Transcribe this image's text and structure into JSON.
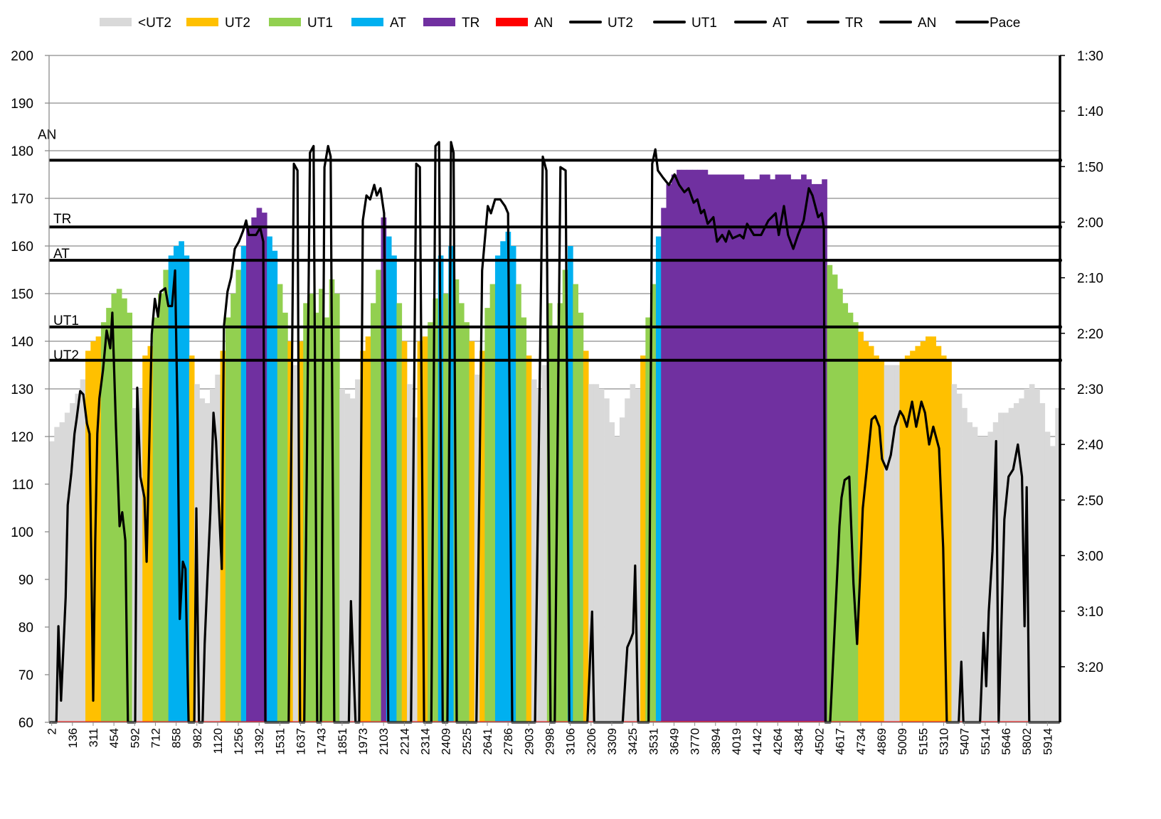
{
  "chart_data": {
    "type": "bar+line",
    "title": "",
    "xlabel": "",
    "ylabel": "",
    "ylim": [
      60,
      200
    ],
    "y_ticks": [
      "60",
      "70",
      "80",
      "90",
      "100",
      "110",
      "120",
      "130",
      "140",
      "150",
      "160",
      "170",
      "180",
      "190",
      "200"
    ],
    "y2_label": "Pace",
    "y2lim_seconds": [
      90,
      210
    ],
    "y2_inverted": true,
    "y2_ticks": [
      "1:30",
      "1:40",
      "1:50",
      "2:00",
      "2:10",
      "2:20",
      "2:30",
      "2:40",
      "2:50",
      "3:00",
      "3:10",
      "3:20"
    ],
    "x_tick_labels": [
      "2",
      "136",
      "311",
      "454",
      "592",
      "712",
      "858",
      "982",
      "1120",
      "1256",
      "1392",
      "1531",
      "1637",
      "1743",
      "1851",
      "1973",
      "2103",
      "2214",
      "2314",
      "2409",
      "2525",
      "2641",
      "2786",
      "2903",
      "2998",
      "3106",
      "3206",
      "3309",
      "3425",
      "3531",
      "3649",
      "3770",
      "3894",
      "4019",
      "4142",
      "4264",
      "4384",
      "4502",
      "4617",
      "4734",
      "4869",
      "5009",
      "5155",
      "5310",
      "5407",
      "5514",
      "5646",
      "5802",
      "5914"
    ],
    "samples_per_tick": 4,
    "grid": true,
    "legend_position": "top",
    "legend": [
      {
        "label": "<UT2",
        "kind": "bar",
        "color": "#d9d9d9"
      },
      {
        "label": "UT2",
        "kind": "bar",
        "color": "#ffc000"
      },
      {
        "label": "UT1",
        "kind": "bar",
        "color": "#92d050"
      },
      {
        "label": "AT",
        "kind": "bar",
        "color": "#00b0f0"
      },
      {
        "label": "TR",
        "kind": "bar",
        "color": "#7030a0"
      },
      {
        "label": "AN",
        "kind": "bar",
        "color": "#ff0000"
      },
      {
        "label": "UT2",
        "kind": "line",
        "color": "#000000"
      },
      {
        "label": "UT1",
        "kind": "line",
        "color": "#000000"
      },
      {
        "label": "AT",
        "kind": "line",
        "color": "#000000"
      },
      {
        "label": "TR",
        "kind": "line",
        "color": "#000000"
      },
      {
        "label": "AN",
        "kind": "line",
        "color": "#000000"
      },
      {
        "label": "Pace",
        "kind": "line",
        "color": "#000000"
      }
    ],
    "thresholds": [
      {
        "name": "UT2",
        "hr": 136
      },
      {
        "name": "UT1",
        "hr": 143
      },
      {
        "name": "AT",
        "hr": 157
      },
      {
        "name": "TR",
        "hr": 164
      },
      {
        "name": "AN",
        "hr": 178
      }
    ],
    "heart_rate": [
      119,
      122,
      123,
      125,
      127,
      129,
      132,
      138,
      140,
      141,
      144,
      147,
      150,
      151,
      149,
      146,
      126,
      130,
      137,
      139,
      145,
      150,
      155,
      158,
      160,
      161,
      158,
      137,
      131,
      128,
      127,
      130,
      133,
      138,
      145,
      150,
      155,
      160,
      164,
      166,
      168,
      167,
      162,
      159,
      152,
      146,
      140,
      135,
      140,
      148,
      150,
      146,
      151,
      145,
      153,
      150,
      130,
      129,
      128,
      132,
      138,
      141,
      148,
      155,
      166,
      162,
      158,
      148,
      140,
      131,
      124,
      140,
      141,
      144,
      149,
      158,
      150,
      160,
      153,
      148,
      144,
      140,
      133,
      138,
      147,
      152,
      158,
      161,
      163,
      160,
      152,
      145,
      137,
      132,
      130,
      135,
      148,
      143,
      148,
      155,
      160,
      152,
      146,
      138,
      131,
      131,
      130,
      128,
      123,
      120,
      124,
      128,
      131,
      130,
      137,
      145,
      152,
      162,
      168,
      173,
      175,
      176,
      176,
      176,
      176,
      176,
      176,
      175,
      175,
      175,
      175,
      175,
      175,
      175,
      174,
      174,
      174,
      175,
      175,
      174,
      175,
      175,
      175,
      174,
      174,
      175,
      174,
      173,
      173,
      174,
      156,
      154,
      151,
      148,
      146,
      144,
      142,
      140,
      139,
      137,
      136,
      135,
      135,
      135,
      136,
      137,
      138,
      139,
      140,
      141,
      141,
      139,
      137,
      136,
      131,
      129,
      126,
      123,
      122,
      120,
      120,
      121,
      123,
      125,
      125,
      126,
      127,
      128,
      130,
      131,
      130,
      127,
      121,
      118,
      126
    ],
    "pace_seconds": [
      [
        0,
        210
      ],
      [
        1.4,
        210
      ],
      [
        1.8,
        192.7
      ],
      [
        2.3,
        206.1
      ],
      [
        3.2,
        187.5
      ],
      [
        3.6,
        170.9
      ],
      [
        4.3,
        165.1
      ],
      [
        4.9,
        158.1
      ],
      [
        5.3,
        155.5
      ],
      [
        6.0,
        150.4
      ],
      [
        6.6,
        151.0
      ],
      [
        7.3,
        156.2
      ],
      [
        7.8,
        158.1
      ],
      [
        8.5,
        206.1
      ],
      [
        8.9,
        177.3
      ],
      [
        9.3,
        158.1
      ],
      [
        9.7,
        151.7
      ],
      [
        10.4,
        146.6
      ],
      [
        11.1,
        139.5
      ],
      [
        11.8,
        142.7
      ],
      [
        12.2,
        136.3
      ],
      [
        12.9,
        156.8
      ],
      [
        13.6,
        174.7
      ],
      [
        14.1,
        172.2
      ],
      [
        14.7,
        177.3
      ],
      [
        15.2,
        210
      ],
      [
        16.6,
        210
      ],
      [
        17.0,
        149.8
      ],
      [
        17.6,
        165.8
      ],
      [
        18.4,
        169.6
      ],
      [
        18.8,
        181.1
      ],
      [
        19.2,
        164.6
      ],
      [
        19.8,
        140.2
      ],
      [
        20.4,
        133.8
      ],
      [
        21.0,
        137.0
      ],
      [
        21.5,
        132.5
      ],
      [
        22.4,
        131.9
      ],
      [
        23.0,
        135.1
      ],
      [
        23.7,
        135.1
      ],
      [
        24.3,
        128.7
      ],
      [
        24.8,
        156.8
      ],
      [
        25.2,
        191.4
      ],
      [
        25.8,
        181.1
      ],
      [
        26.3,
        182.4
      ],
      [
        26.9,
        210
      ],
      [
        28.0,
        210
      ],
      [
        28.4,
        171.5
      ],
      [
        28.9,
        210
      ],
      [
        29.6,
        210
      ],
      [
        30.0,
        195.9
      ],
      [
        30.6,
        182.4
      ],
      [
        31.1,
        172.2
      ],
      [
        31.7,
        154.3
      ],
      [
        32.2,
        159.4
      ],
      [
        32.8,
        172.2
      ],
      [
        33.3,
        182.4
      ],
      [
        33.7,
        138.9
      ],
      [
        34.4,
        132.5
      ],
      [
        35.1,
        129.9
      ],
      [
        35.8,
        124.8
      ],
      [
        36.6,
        123.5
      ],
      [
        37.4,
        121.6
      ],
      [
        38.0,
        119.7
      ],
      [
        38.5,
        122.3
      ],
      [
        39.9,
        122.3
      ],
      [
        40.7,
        121.0
      ],
      [
        41.3,
        123.5
      ],
      [
        41.7,
        210
      ],
      [
        46.2,
        210
      ],
      [
        47.2,
        109.5
      ],
      [
        47.9,
        110.7
      ],
      [
        48.4,
        210
      ],
      [
        49.2,
        210
      ],
      [
        50.3,
        107.5
      ],
      [
        51.0,
        106.3
      ],
      [
        51.7,
        210
      ],
      [
        52.4,
        210
      ],
      [
        53.1,
        110.1
      ],
      [
        53.8,
        106.3
      ],
      [
        54.3,
        108.2
      ],
      [
        55.0,
        210
      ],
      [
        57.8,
        210
      ],
      [
        58.2,
        188.2
      ],
      [
        59.1,
        210
      ],
      [
        59.8,
        210
      ],
      [
        60.5,
        119.7
      ],
      [
        61.2,
        115.2
      ],
      [
        61.9,
        115.9
      ],
      [
        62.7,
        113.3
      ],
      [
        63.2,
        115.2
      ],
      [
        63.9,
        113.9
      ],
      [
        64.6,
        118.4
      ],
      [
        65.4,
        210
      ],
      [
        69.8,
        210
      ],
      [
        70.8,
        109.5
      ],
      [
        71.5,
        110.1
      ],
      [
        72.3,
        210
      ],
      [
        73.7,
        210
      ],
      [
        74.5,
        106.3
      ],
      [
        75.2,
        105.6
      ],
      [
        75.9,
        210
      ],
      [
        76.8,
        210
      ],
      [
        77.5,
        105.6
      ],
      [
        78.0,
        107.5
      ],
      [
        78.6,
        210
      ],
      [
        82.4,
        210
      ],
      [
        83.5,
        128.7
      ],
      [
        84.6,
        117.1
      ],
      [
        85.2,
        118.4
      ],
      [
        86.0,
        115.9
      ],
      [
        87.0,
        115.9
      ],
      [
        87.9,
        117.1
      ],
      [
        88.5,
        118.4
      ],
      [
        89.3,
        210
      ],
      [
        93.7,
        210
      ],
      [
        95.2,
        108.2
      ],
      [
        95.9,
        110.7
      ],
      [
        96.7,
        210
      ],
      [
        97.5,
        210
      ],
      [
        98.6,
        110.1
      ],
      [
        99.6,
        110.7
      ],
      [
        100.3,
        210
      ],
      [
        103.8,
        210
      ],
      [
        104.7,
        190.1
      ],
      [
        105.1,
        210
      ],
      [
        110.6,
        210
      ],
      [
        111.5,
        196.5
      ],
      [
        112.1,
        195.2
      ],
      [
        112.6,
        193.9
      ],
      [
        113.0,
        181.8
      ],
      [
        113.6,
        210
      ],
      [
        115.6,
        210
      ],
      [
        116.3,
        109.5
      ],
      [
        116.9,
        106.9
      ],
      [
        117.4,
        110.7
      ],
      [
        118.4,
        112.0
      ],
      [
        119.5,
        113.3
      ],
      [
        120.6,
        111.4
      ],
      [
        121.5,
        113.3
      ],
      [
        122.5,
        114.6
      ],
      [
        123.3,
        113.9
      ],
      [
        124.3,
        116.5
      ],
      [
        125.0,
        115.9
      ],
      [
        125.7,
        118.4
      ],
      [
        126.3,
        117.8
      ],
      [
        127.0,
        120.3
      ],
      [
        128.1,
        119.1
      ],
      [
        128.8,
        123.5
      ],
      [
        129.8,
        122.3
      ],
      [
        130.5,
        123.5
      ],
      [
        131.1,
        121.6
      ],
      [
        131.8,
        122.9
      ],
      [
        133.2,
        122.3
      ],
      [
        133.9,
        122.9
      ],
      [
        134.6,
        120.3
      ],
      [
        135.9,
        122.3
      ],
      [
        137.3,
        122.3
      ],
      [
        138.7,
        119.7
      ],
      [
        140.1,
        118.4
      ],
      [
        140.7,
        122.3
      ],
      [
        141.7,
        117.1
      ],
      [
        142.5,
        122.3
      ],
      [
        143.5,
        124.8
      ],
      [
        144.4,
        122.3
      ],
      [
        145.5,
        119.7
      ],
      [
        146.5,
        113.9
      ],
      [
        147.2,
        115.2
      ],
      [
        148.3,
        119.1
      ],
      [
        149.0,
        118.4
      ],
      [
        149.4,
        121.0
      ],
      [
        149.7,
        210
      ],
      [
        150.6,
        210
      ],
      [
        151.3,
        196.5
      ],
      [
        152.4,
        174.7
      ],
      [
        152.8,
        169.6
      ],
      [
        153.4,
        166.4
      ],
      [
        154.3,
        165.8
      ],
      [
        155.1,
        185.0
      ],
      [
        155.8,
        195.9
      ],
      [
        156.4,
        183.1
      ],
      [
        156.9,
        171.5
      ],
      [
        157.6,
        165.1
      ],
      [
        158.6,
        155.5
      ],
      [
        159.3,
        154.9
      ],
      [
        160.1,
        156.8
      ],
      [
        160.6,
        162.6
      ],
      [
        161.5,
        164.5
      ],
      [
        162.3,
        161.9
      ],
      [
        163.1,
        156.8
      ],
      [
        164.1,
        154.0
      ],
      [
        164.7,
        154.9
      ],
      [
        165.4,
        156.8
      ],
      [
        166.4,
        152.3
      ],
      [
        167.2,
        156.8
      ],
      [
        168.2,
        152.3
      ],
      [
        168.9,
        154.3
      ],
      [
        169.7,
        160.0
      ],
      [
        170.5,
        156.8
      ],
      [
        171.6,
        160.7
      ],
      [
        172.4,
        178.6
      ],
      [
        173.1,
        210
      ],
      [
        175.4,
        210
      ],
      [
        175.9,
        199.1
      ],
      [
        176.3,
        210
      ],
      [
        179.5,
        210
      ],
      [
        180.2,
        193.9
      ],
      [
        180.7,
        203.5
      ],
      [
        181.2,
        190.1
      ],
      [
        181.9,
        179.2
      ],
      [
        182.6,
        159.4
      ],
      [
        183.1,
        210
      ],
      [
        184.2,
        173.5
      ],
      [
        185.0,
        165.8
      ],
      [
        185.9,
        164.5
      ],
      [
        186.8,
        160.0
      ],
      [
        187.6,
        165.8
      ],
      [
        188.1,
        192.7
      ],
      [
        188.5,
        167.7
      ],
      [
        189.0,
        210
      ],
      [
        194.9,
        210
      ]
    ]
  }
}
